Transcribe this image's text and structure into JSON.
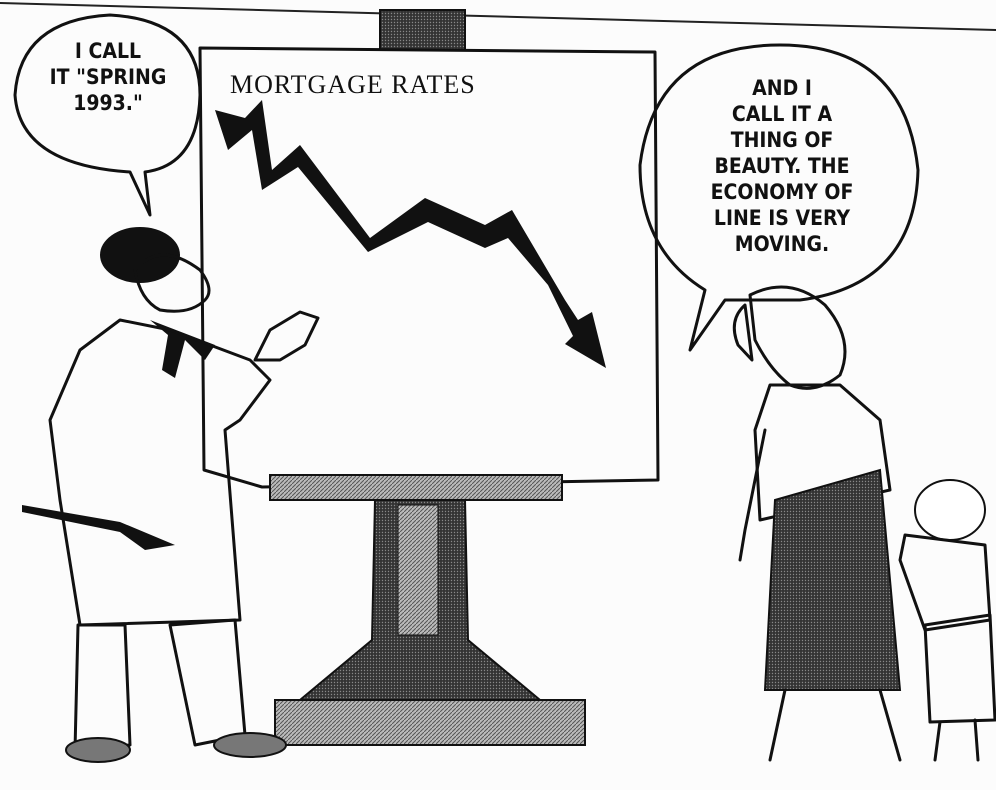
{
  "left_bubble": {
    "lines": [
      "I CALL",
      "IT \"SPRING",
      "1993.\""
    ]
  },
  "easel": {
    "title": "MORTGAGE RATES"
  },
  "right_bubble": {
    "lines": [
      "AND I",
      "CALL IT A",
      "THING OF",
      "BEAUTY. THE",
      "ECONOMY OF",
      "LINE IS VERY",
      "MOVING."
    ]
  }
}
